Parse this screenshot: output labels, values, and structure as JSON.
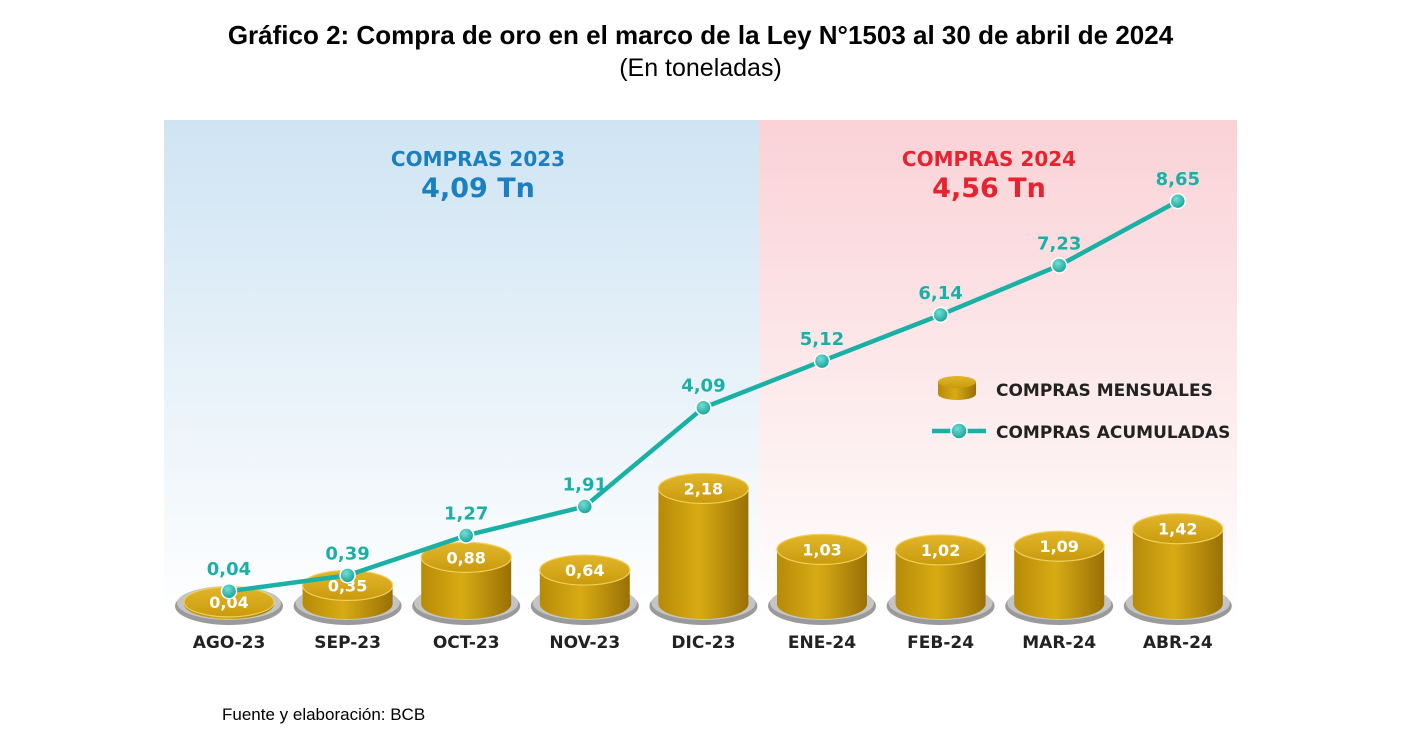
{
  "title": "Gráfico 2: Compra de oro en el marco de la Ley N°1503 al 30 de abril de 2024",
  "subtitle": "(En toneladas)",
  "source": "Fuente y elaboración: BCB",
  "chart_data": {
    "type": "bar",
    "title": "Gráfico 2: Compra de oro en el marco de la Ley N°1503 al 30 de abril de 2024",
    "subtitle": "(En toneladas)",
    "categories": [
      "AGO-23",
      "SEP-23",
      "OCT-23",
      "NOV-23",
      "DIC-23",
      "ENE-24",
      "FEB-24",
      "MAR-24",
      "ABR-24"
    ],
    "series": [
      {
        "name": "COMPRAS MENSUALES",
        "kind": "bar",
        "values": [
          0.04,
          0.35,
          0.88,
          0.64,
          2.18,
          1.03,
          1.02,
          1.09,
          1.42
        ],
        "labels": [
          "0,04",
          "0,35",
          "0,88",
          "0,64",
          "2,18",
          "1,03",
          "1,02",
          "1,09",
          "1,42"
        ]
      },
      {
        "name": "COMPRAS ACUMULADAS",
        "kind": "line",
        "values": [
          0.04,
          0.39,
          1.27,
          1.91,
          4.09,
          5.12,
          6.14,
          7.23,
          8.65
        ],
        "labels": [
          "0,04",
          "0,39",
          "1,27",
          "1,91",
          "4,09",
          "5,12",
          "6,14",
          "7,23",
          "8,65"
        ]
      }
    ],
    "panels": [
      {
        "label": "COMPRAS 2023",
        "total": "4,09 Tn",
        "categories": [
          "AGO-23",
          "SEP-23",
          "OCT-23",
          "NOV-23",
          "DIC-23"
        ]
      },
      {
        "label": "COMPRAS 2024",
        "total": "4,56 Tn",
        "categories": [
          "ENE-24",
          "FEB-24",
          "MAR-24",
          "ABR-24"
        ]
      }
    ],
    "legend": [
      "COMPRAS MENSUALES",
      "COMPRAS ACUMULADAS"
    ],
    "legend_position": "right",
    "grid": false,
    "colors": {
      "gold": "#d9a90e",
      "gold_dark": "#a97d06",
      "line": "#1ab0a6",
      "blue_text": "#1a80bf",
      "red_text": "#e8222e",
      "panel_2023": "#d5e8f5",
      "panel_2024": "#fbd9dc"
    }
  }
}
